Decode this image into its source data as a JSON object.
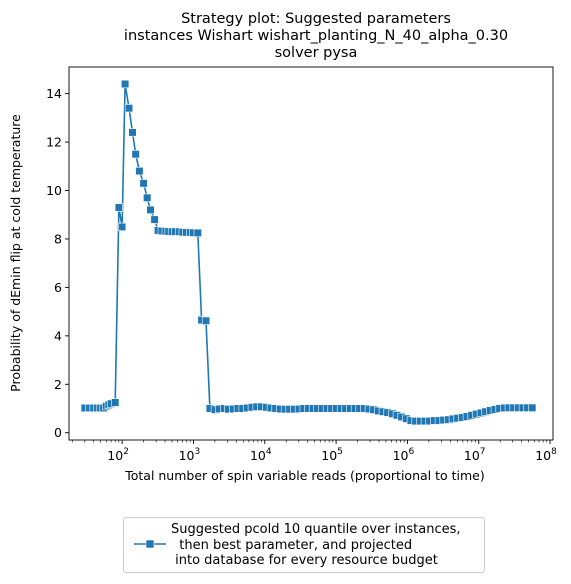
{
  "chart_data": {
    "type": "line",
    "title_lines": [
      "Strategy plot: Suggested parameters",
      "instances Wishart wishart_planting_N_40_alpha_0.30",
      "solver pysa"
    ],
    "xlabel": "Total number of spin variable reads (proportional to time)",
    "ylabel": "Probability of dEmin flip at cold temperature",
    "xscale": "log",
    "xlim": [
      18,
      110000000
    ],
    "ylim": [
      -0.3,
      15.1
    ],
    "x_ticks": [
      {
        "value": 100,
        "base": "10",
        "exp": "2"
      },
      {
        "value": 1000,
        "base": "10",
        "exp": "3"
      },
      {
        "value": 10000,
        "base": "10",
        "exp": "4"
      },
      {
        "value": 100000,
        "base": "10",
        "exp": "5"
      },
      {
        "value": 1000000,
        "base": "10",
        "exp": "6"
      },
      {
        "value": 10000000,
        "base": "10",
        "exp": "7"
      },
      {
        "value": 100000000,
        "base": "10",
        "exp": "8"
      }
    ],
    "y_ticks": [
      0,
      2,
      4,
      6,
      8,
      10,
      12,
      14
    ],
    "grid": false,
    "legend_position": "below",
    "series": [
      {
        "name": "Suggested pcold 10 quantile over instances,\n  then best parameter, and projected\n into database for every resource budget",
        "color": "#1f77b4",
        "marker": "square",
        "x": [
          30,
          35,
          40,
          45,
          50,
          55,
          60,
          65,
          70,
          80,
          90,
          100,
          110,
          125,
          140,
          155,
          175,
          200,
          225,
          250,
          285,
          320,
          360,
          410,
          450,
          500,
          560,
          630,
          710,
          800,
          900,
          1000,
          1150,
          1300,
          1500,
          1700,
          2000,
          2300,
          2700,
          3100,
          3600,
          4200,
          4900,
          5700,
          6600,
          7700,
          9000,
          10500,
          12200,
          14200,
          16500,
          19200,
          22300,
          26000,
          30200,
          35100,
          40800,
          47400,
          55100,
          64100,
          74500,
          86600,
          100700,
          117100,
          136100,
          158200,
          183900,
          213800,
          248500,
          288900,
          335900,
          390500,
          454000,
          527800,
          613600,
          713300,
          829300,
          964100,
          1120800,
          1303000,
          1514800,
          1761000,
          2047300,
          2380000,
          2766900,
          3216700,
          3739600,
          4347500,
          5054200,
          5875700,
          6830700,
          7941000,
          9231800,
          10732300,
          12476800,
          14504800,
          16862500,
          19603300,
          22789600,
          26493800,
          30800000,
          35806200,
          41626100,
          48391900,
          56257600
        ],
        "y": [
          1.02,
          1.02,
          1.02,
          1.02,
          1.02,
          1.02,
          1.1,
          1.15,
          1.2,
          1.25,
          9.3,
          8.5,
          14.4,
          13.4,
          12.4,
          11.5,
          10.8,
          10.3,
          9.7,
          9.2,
          8.8,
          8.35,
          8.33,
          8.32,
          8.31,
          8.3,
          8.3,
          8.3,
          8.28,
          8.27,
          8.27,
          8.26,
          8.25,
          4.65,
          4.62,
          1.0,
          0.95,
          0.98,
          1.0,
          0.97,
          0.98,
          1.0,
          1.0,
          1.02,
          1.05,
          1.07,
          1.07,
          1.05,
          1.02,
          1.0,
          0.98,
          0.97,
          0.97,
          0.97,
          0.98,
          1.0,
          1.0,
          1.0,
          1.0,
          1.0,
          1.0,
          1.0,
          1.0,
          1.0,
          1.0,
          1.0,
          1.0,
          1.0,
          1.0,
          0.98,
          0.95,
          0.9,
          0.87,
          0.83,
          0.78,
          0.72,
          0.65,
          0.58,
          0.5,
          0.48,
          0.48,
          0.48,
          0.48,
          0.5,
          0.5,
          0.52,
          0.54,
          0.57,
          0.6,
          0.63,
          0.67,
          0.72,
          0.77,
          0.82,
          0.87,
          0.92,
          0.96,
          1.0,
          1.02,
          1.03,
          1.03,
          1.03,
          1.03,
          1.03,
          1.03
        ]
      }
    ]
  },
  "legend": {
    "label": "Suggested pcold 10 quantile over instances,\n  then best parameter, and projected\n into database for every resource budget"
  }
}
